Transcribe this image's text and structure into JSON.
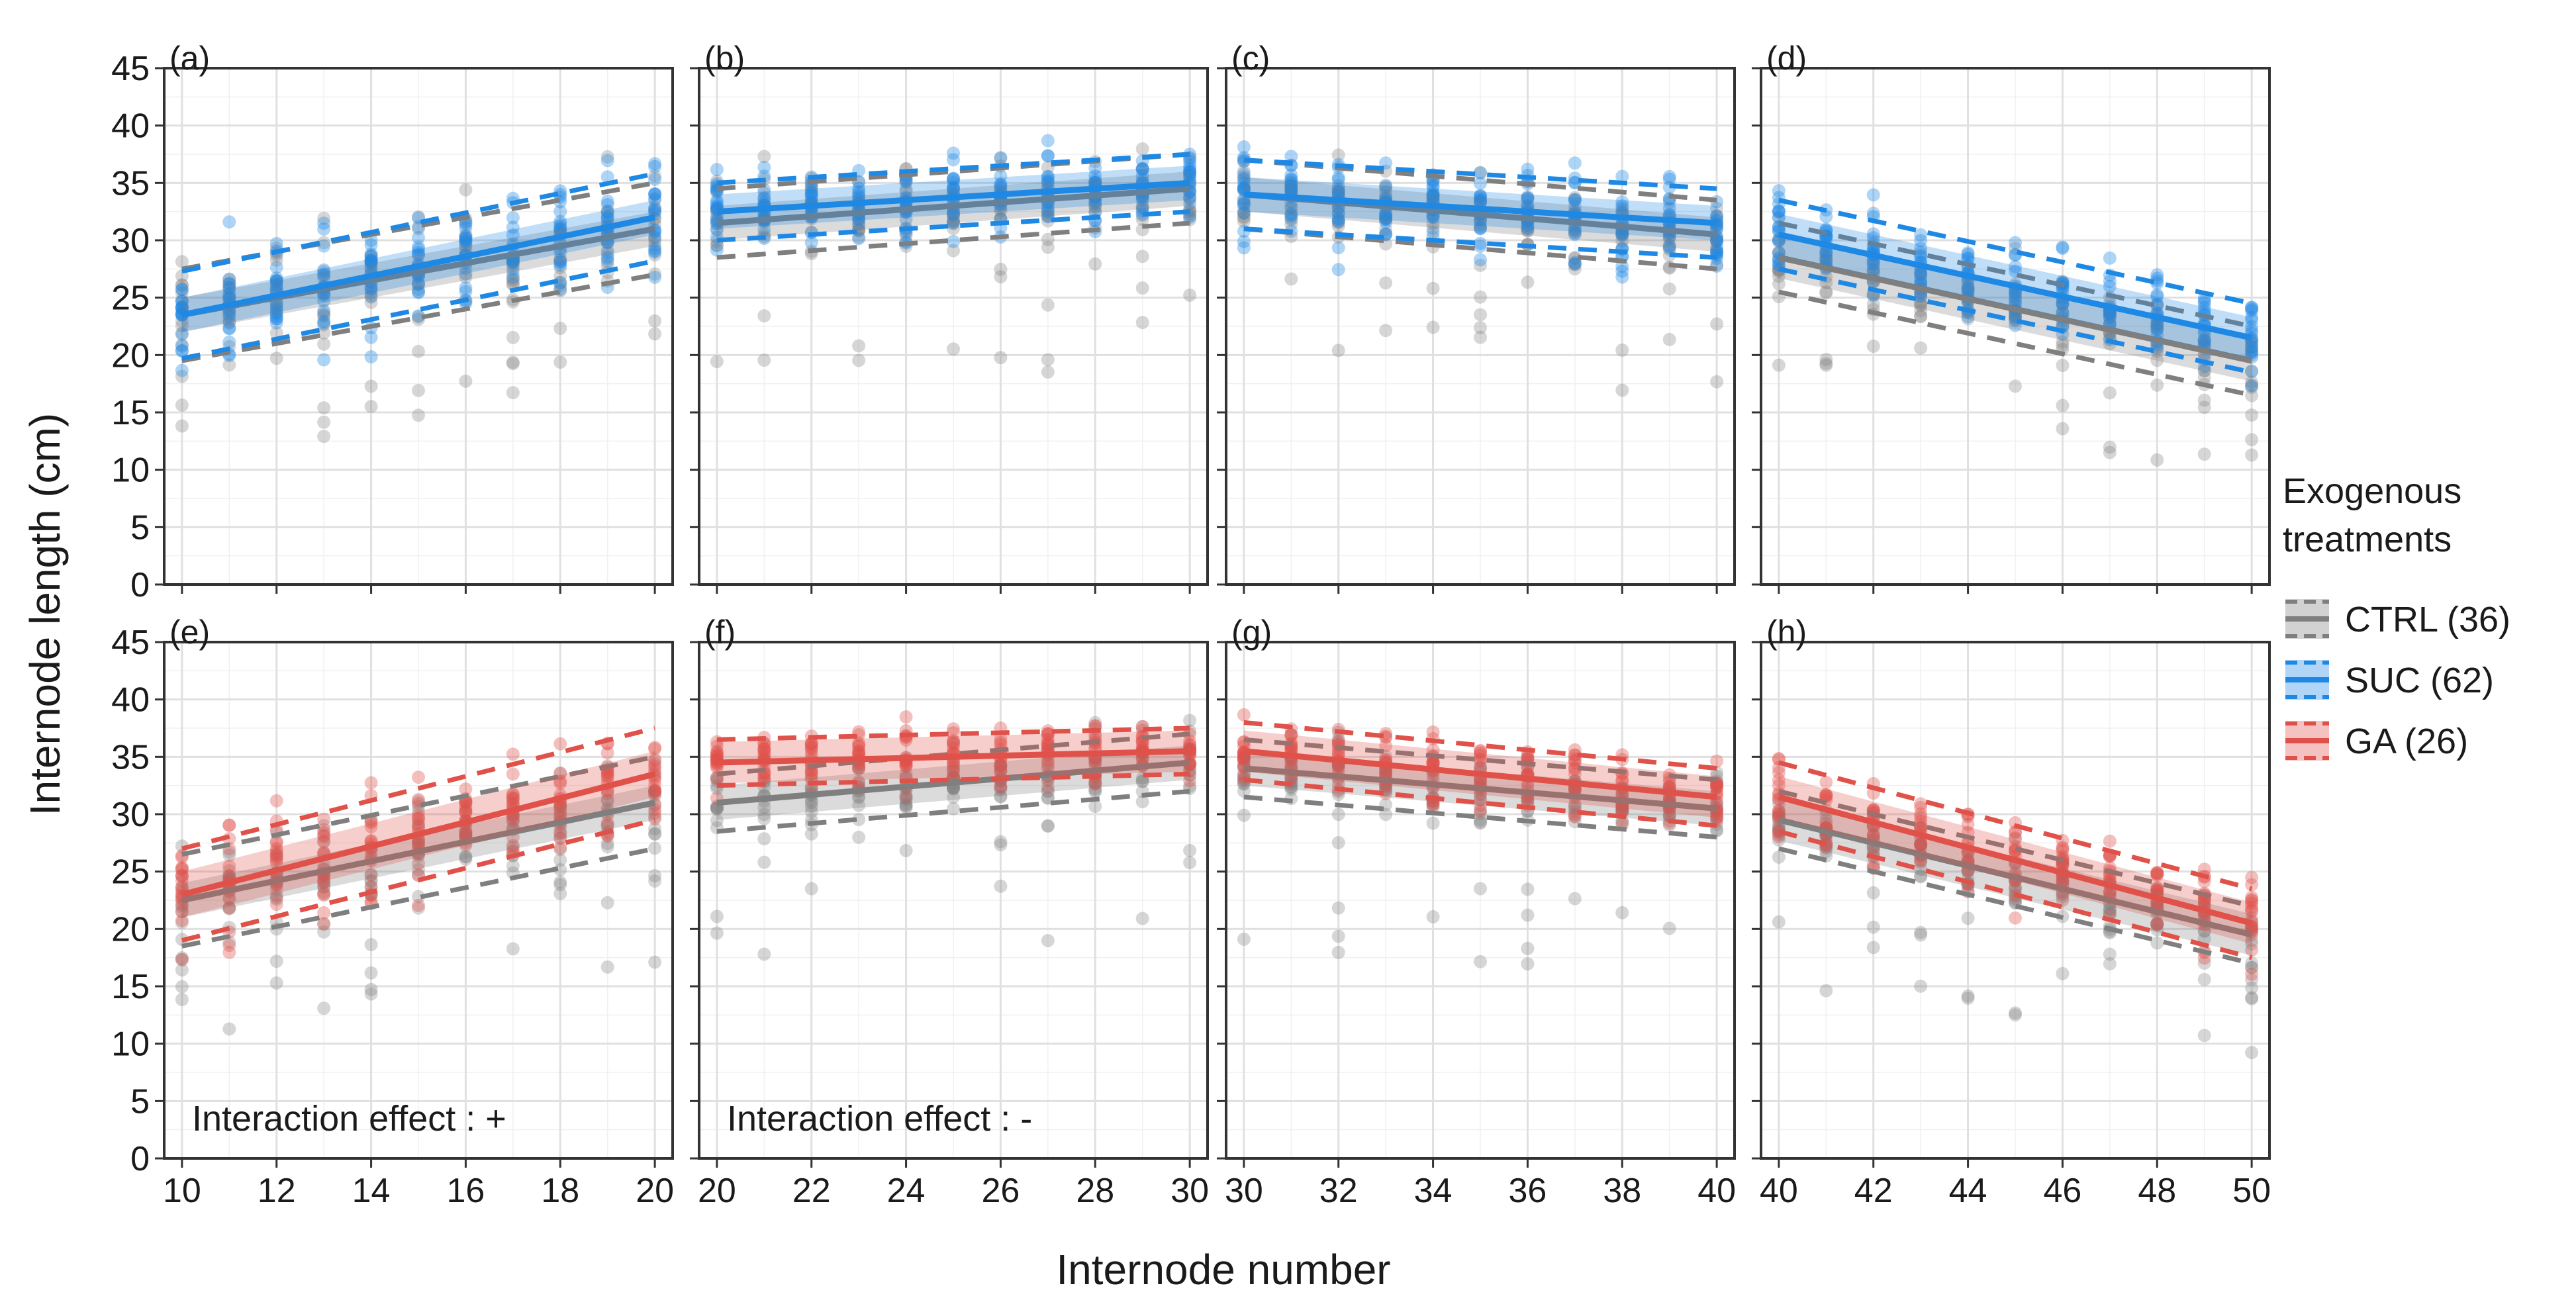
{
  "chart_data": {
    "type": "scatter",
    "title": "",
    "xlabel": "Internode number",
    "ylabel": "Internode length (cm)",
    "ylim": [
      0,
      45
    ],
    "yticks": [
      "0",
      "5",
      "10",
      "15",
      "20",
      "25",
      "30",
      "35",
      "40",
      "45"
    ],
    "legend": {
      "title_line1": "Exogenous",
      "title_line2": "treatments",
      "position": "right",
      "entries": [
        {
          "key": "CTRL",
          "label": "CTRL (36)",
          "color": "#7f7f7f"
        },
        {
          "key": "SUC",
          "label": "SUC (62)",
          "color": "#1e88e5"
        },
        {
          "key": "GA",
          "label": "GA (26)",
          "color": "#e0514a"
        }
      ]
    },
    "colors": {
      "CTRL": "#7f7f7f",
      "SUC": "#1e88e5",
      "GA": "#e0514a"
    },
    "panels": [
      {
        "tag": "(a)",
        "row": 0,
        "col": 0,
        "xlim": [
          10,
          20
        ],
        "xticks": [
          "10",
          "12",
          "14",
          "16",
          "18",
          "20"
        ],
        "treatment": "SUC",
        "annotation": "",
        "series": [
          {
            "name": "CTRL",
            "fit_start": 23.5,
            "fit_end": 31.0,
            "band": 1.5,
            "pi": 4.0
          },
          {
            "name": "SUC",
            "fit_start": 23.5,
            "fit_end": 32.0,
            "band": 1.5,
            "pi": 3.8
          }
        ]
      },
      {
        "tag": "(b)",
        "row": 0,
        "col": 1,
        "xlim": [
          20,
          30
        ],
        "xticks": [
          "20",
          "22",
          "24",
          "26",
          "28",
          "30"
        ],
        "treatment": "SUC",
        "annotation": "",
        "series": [
          {
            "name": "CTRL",
            "fit_start": 31.5,
            "fit_end": 34.5,
            "band": 1.5,
            "pi": 3.0
          },
          {
            "name": "SUC",
            "fit_start": 32.5,
            "fit_end": 35.0,
            "band": 1.5,
            "pi": 2.5
          }
        ]
      },
      {
        "tag": "(c)",
        "row": 0,
        "col": 2,
        "xlim": [
          30,
          40
        ],
        "xticks": [
          "30",
          "32",
          "34",
          "36",
          "38",
          "40"
        ],
        "treatment": "SUC",
        "annotation": "",
        "series": [
          {
            "name": "CTRL",
            "fit_start": 34.0,
            "fit_end": 30.5,
            "band": 1.5,
            "pi": 3.0
          },
          {
            "name": "SUC",
            "fit_start": 34.0,
            "fit_end": 31.5,
            "band": 1.5,
            "pi": 3.0
          }
        ]
      },
      {
        "tag": "(d)",
        "row": 0,
        "col": 3,
        "xlim": [
          40,
          50
        ],
        "xticks": [
          "40",
          "42",
          "44",
          "46",
          "48",
          "50"
        ],
        "treatment": "SUC",
        "annotation": "",
        "series": [
          {
            "name": "CTRL",
            "fit_start": 28.5,
            "fit_end": 19.5,
            "band": 1.8,
            "pi": 3.0
          },
          {
            "name": "SUC",
            "fit_start": 30.5,
            "fit_end": 21.5,
            "band": 1.8,
            "pi": 3.0
          }
        ]
      },
      {
        "tag": "(e)",
        "row": 1,
        "col": 0,
        "xlim": [
          10,
          20
        ],
        "xticks": [
          "10",
          "12",
          "14",
          "16",
          "18",
          "20"
        ],
        "treatment": "GA",
        "annotation": "Interaction effect : +",
        "series": [
          {
            "name": "CTRL",
            "fit_start": 22.5,
            "fit_end": 31.0,
            "band": 1.5,
            "pi": 4.0
          },
          {
            "name": "GA",
            "fit_start": 23.0,
            "fit_end": 33.5,
            "band": 2.0,
            "pi": 4.0
          }
        ]
      },
      {
        "tag": "(f)",
        "row": 1,
        "col": 1,
        "xlim": [
          20,
          30
        ],
        "xticks": [
          "20",
          "22",
          "24",
          "26",
          "28",
          "30"
        ],
        "treatment": "GA",
        "annotation": "Interaction effect : -",
        "series": [
          {
            "name": "CTRL",
            "fit_start": 31.0,
            "fit_end": 34.5,
            "band": 1.5,
            "pi": 2.5
          },
          {
            "name": "GA",
            "fit_start": 34.5,
            "fit_end": 35.5,
            "band": 1.8,
            "pi": 2.0
          }
        ]
      },
      {
        "tag": "(g)",
        "row": 1,
        "col": 2,
        "xlim": [
          30,
          40
        ],
        "xticks": [
          "30",
          "32",
          "34",
          "36",
          "38",
          "40"
        ],
        "treatment": "GA",
        "annotation": "",
        "series": [
          {
            "name": "CTRL",
            "fit_start": 34.0,
            "fit_end": 30.5,
            "band": 1.5,
            "pi": 2.5
          },
          {
            "name": "GA",
            "fit_start": 35.5,
            "fit_end": 31.5,
            "band": 1.8,
            "pi": 2.5
          }
        ]
      },
      {
        "tag": "(h)",
        "row": 1,
        "col": 3,
        "xlim": [
          40,
          50
        ],
        "xticks": [
          "40",
          "42",
          "44",
          "46",
          "48",
          "50"
        ],
        "treatment": "GA",
        "annotation": "",
        "series": [
          {
            "name": "CTRL",
            "fit_start": 29.5,
            "fit_end": 19.5,
            "band": 1.8,
            "pi": 2.5
          },
          {
            "name": "GA",
            "fit_start": 31.5,
            "fit_end": 20.5,
            "band": 1.8,
            "pi": 3.0
          }
        ]
      }
    ]
  }
}
